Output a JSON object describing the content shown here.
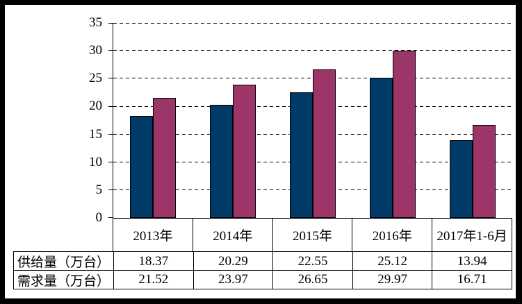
{
  "colors": {
    "frame_border": "#000000",
    "background": "#FFFFFF",
    "axis": "#000000",
    "supply_bar": "#003A69",
    "demand_bar": "#9C3568"
  },
  "chart_data": {
    "type": "bar",
    "title": "",
    "xlabel": "",
    "ylabel": "",
    "categories": [
      "2013年",
      "2014年",
      "2015年",
      "2016年",
      "2017年1-6月"
    ],
    "series": [
      {
        "name": "供给量（万台）",
        "color": "#003A69",
        "values": [
          18.37,
          20.29,
          22.55,
          25.12,
          13.94
        ]
      },
      {
        "name": "需求量（万台）",
        "color": "#9C3568",
        "values": [
          21.52,
          23.97,
          26.65,
          29.97,
          16.71
        ]
      }
    ],
    "ylim": [
      0,
      35
    ],
    "y_tick_step": 5,
    "y_ticks": [
      "0",
      "5",
      "10",
      "15",
      "20",
      "25",
      "30",
      "35"
    ],
    "grid": "horizontal dashed lines on",
    "legend_position": "none (series identified via table row headers)"
  },
  "table": {
    "columns": [
      "2013年",
      "2014年",
      "2015年",
      "2016年",
      "2017年1-6月"
    ],
    "row_headers": [
      "供给量（万台）",
      "需求量（万台）"
    ],
    "rows": [
      [
        "18.37",
        "20.29",
        "22.55",
        "25.12",
        "13.94"
      ],
      [
        "21.52",
        "23.97",
        "26.65",
        "29.97",
        "16.71"
      ]
    ]
  }
}
